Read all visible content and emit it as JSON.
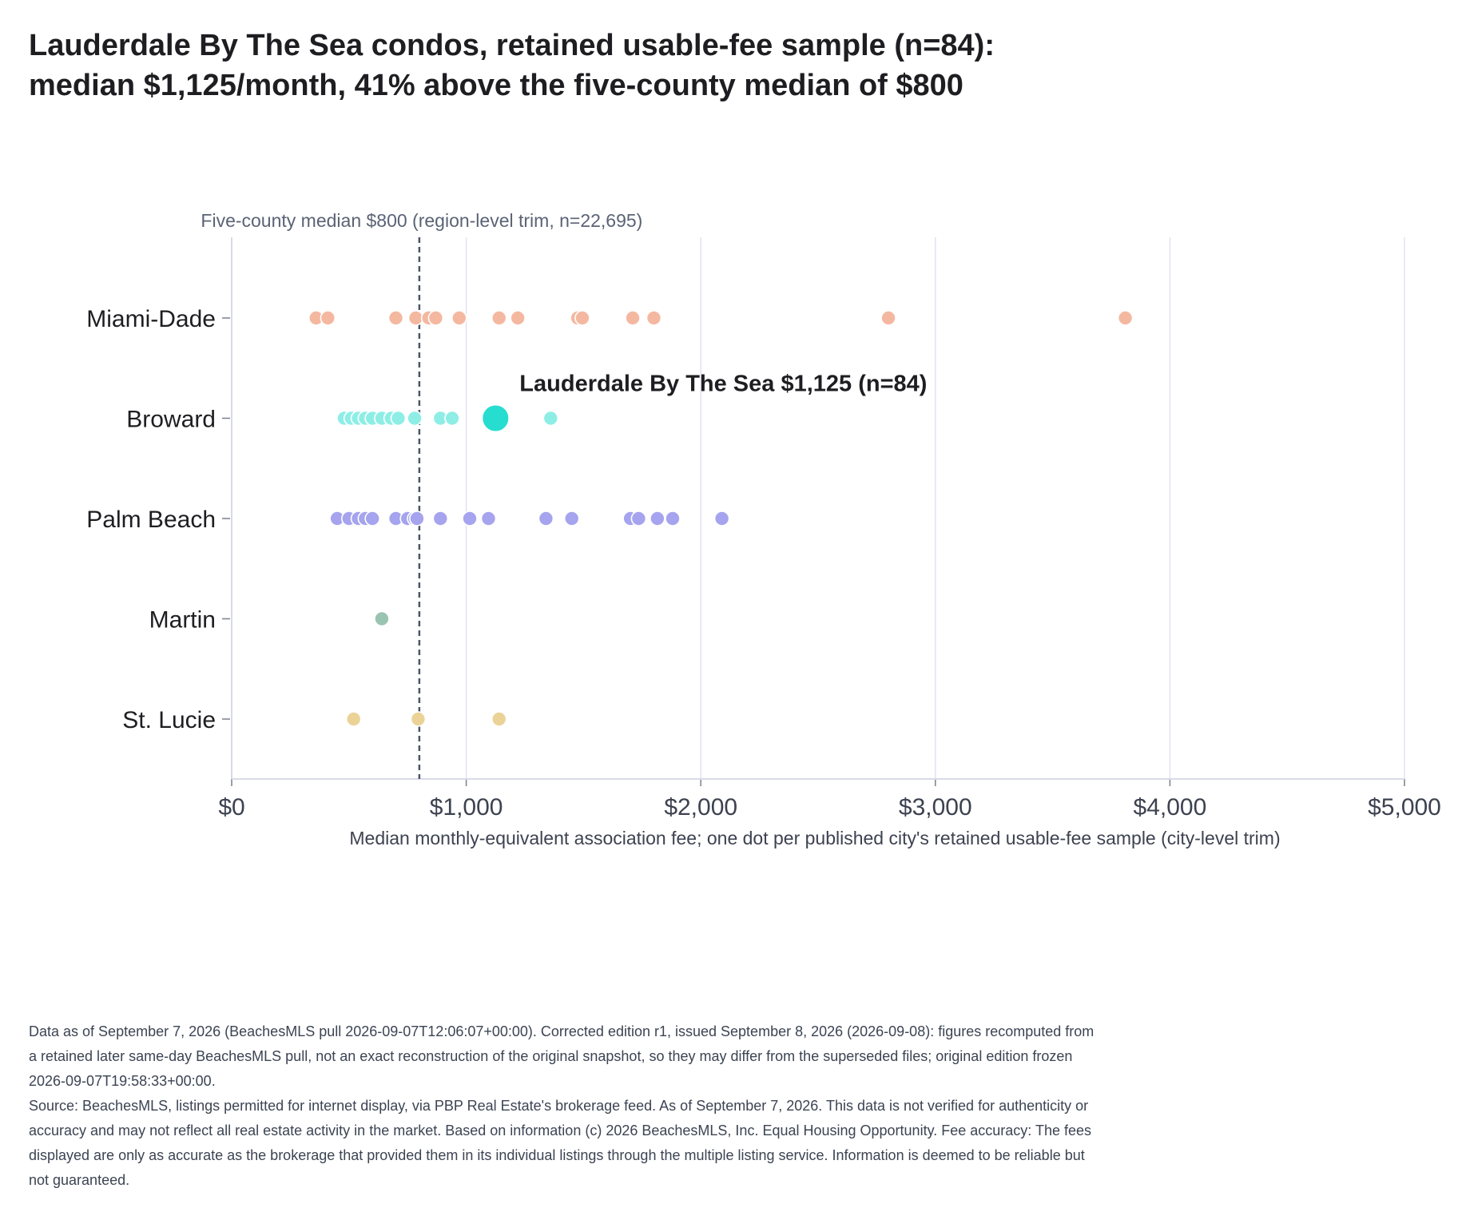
{
  "title_lines": [
    "Lauderdale By The Sea condos, retained usable-fee sample (n=84):",
    "median $1,125/month, 41% above the five-county median of $800"
  ],
  "footnotes": [
    "Data as of September 7, 2026 (BeachesMLS pull 2026-09-07T12:06:07+00:00). Corrected edition r1, issued September 8, 2026 (2026-09-08): figures recomputed from a retained later same-day BeachesMLS pull, not an exact reconstruction of the original snapshot, so they may differ from the superseded files; original edition frozen 2026-09-07T19:58:33+00:00.",
    "Source: BeachesMLS, listings permitted for internet display, via PBP Real Estate's brokerage feed. As of September 7, 2026. This data is not verified for authenticity or accuracy and may not reflect all real estate activity in the market. Based on information (c) 2026 BeachesMLS, Inc. Equal Housing Opportunity. Fee accuracy: The fees displayed are only as accurate as the brokerage that provided them in its individual listings through the multiple listing service. Information is deemed to be reliable but not guaranteed."
  ],
  "chart_data": {
    "type": "scatter",
    "title": "Lauderdale By The Sea condos, retained usable-fee sample (n=84): median $1,125/month, 41% above the five-county median of $800",
    "xlabel": "Median monthly-equivalent association fee; one dot per published city's retained usable-fee sample (city-level trim)",
    "ylabel": "",
    "xlim": [
      0,
      5000
    ],
    "x_ticks": [
      0,
      1000,
      2000,
      3000,
      4000,
      5000
    ],
    "x_tick_labels": [
      "$0",
      "$1,000",
      "$2,000",
      "$3,000",
      "$4,000",
      "$5,000"
    ],
    "grid": "vertical",
    "categories": [
      "Miami-Dade",
      "Broward",
      "Palm Beach",
      "Martin",
      "St. Lucie"
    ],
    "series": [
      {
        "category": "Miami-Dade",
        "color": "#f4b8a0",
        "values": [
          360,
          410,
          700,
          785,
          840,
          870,
          970,
          1140,
          1220,
          1475,
          1495,
          1710,
          1800,
          2800,
          3810
        ]
      },
      {
        "category": "Broward",
        "color": "#8eeee6",
        "values": [
          480,
          510,
          540,
          570,
          600,
          640,
          680,
          710,
          780,
          890,
          940,
          1360
        ]
      },
      {
        "category": "Palm Beach",
        "color": "#a6a4ee",
        "values": [
          450,
          500,
          540,
          570,
          600,
          700,
          750,
          780,
          790,
          890,
          1015,
          1095,
          1340,
          1450,
          1700,
          1735,
          1815,
          1880,
          2090
        ]
      },
      {
        "category": "Martin",
        "color": "#9ac4b2",
        "values": [
          640
        ]
      },
      {
        "category": "St. Lucie",
        "color": "#ebd397",
        "values": [
          520,
          795,
          1140
        ]
      }
    ],
    "highlight": {
      "category": "Broward",
      "value": 1125,
      "color": "#27ddd0",
      "label": "Lauderdale By The Sea $1,125 (n=84)"
    },
    "reference_line": {
      "value": 800,
      "style": "dashed",
      "color": "#4b5566",
      "label": "Five-county median $800 (region-level trim, n=22,695)"
    }
  }
}
